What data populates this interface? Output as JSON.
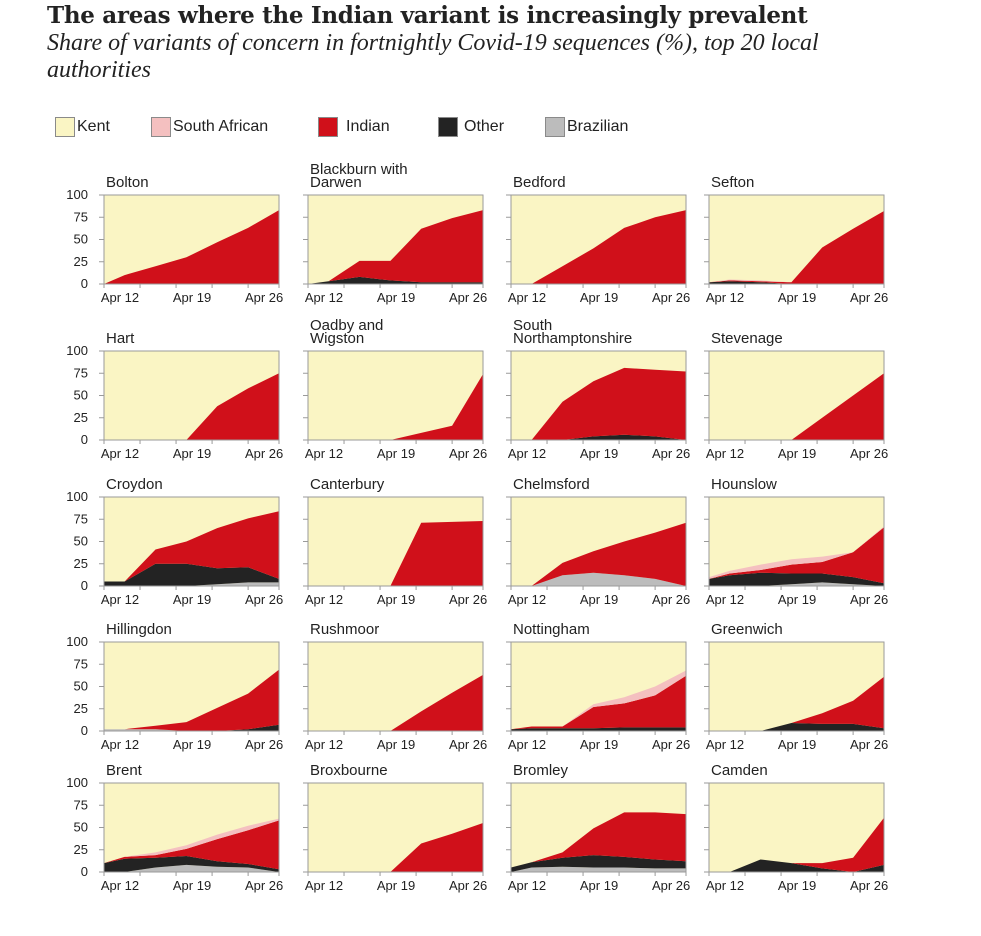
{
  "title": "The areas where the Indian variant is increasingly prevalent",
  "subtitle": "Share of variants of concern in fortnightly Covid-19 sequences (%), top 20 local authorities",
  "chart_data": {
    "type": "area",
    "stacked": true,
    "x": [
      "Apr 12",
      "Apr 14",
      "Apr 17",
      "Apr 20",
      "Apr 23",
      "Apr 26",
      "Apr 29"
    ],
    "xticks": [
      "Apr 12",
      "Apr 19",
      "Apr 26"
    ],
    "yticks": [
      0,
      25,
      50,
      75,
      100
    ],
    "ylim": [
      0,
      100
    ],
    "legend": [
      {
        "name": "Kent",
        "color": "#faf5c4"
      },
      {
        "name": "South African",
        "color": "#f4c0c0"
      },
      {
        "name": "Indian",
        "color": "#d0101a"
      },
      {
        "name": "Other",
        "color": "#232323"
      },
      {
        "name": "Brazilian",
        "color": "#bcbcbc"
      }
    ],
    "panels": [
      {
        "name": "Bolton",
        "brazilian": [
          0,
          0,
          0,
          0,
          0,
          0,
          0
        ],
        "other": [
          0,
          0,
          0,
          0,
          0,
          0,
          0
        ],
        "indian": [
          0,
          10,
          20,
          30,
          47,
          63,
          83
        ],
        "south_african": [
          0,
          0,
          0,
          0,
          0,
          0,
          0
        ]
      },
      {
        "name": "Blackburn with\nDarwen",
        "brazilian": [
          0,
          0,
          0,
          0,
          0,
          0,
          0
        ],
        "other": [
          0,
          3,
          8,
          4,
          2,
          2,
          2
        ],
        "indian": [
          0,
          0,
          18,
          22,
          60,
          72,
          81
        ],
        "south_african": [
          0,
          0,
          0,
          0,
          0,
          0,
          0
        ]
      },
      {
        "name": "Bedford",
        "brazilian": [
          0,
          0,
          0,
          0,
          0,
          0,
          0
        ],
        "other": [
          0,
          0,
          0,
          0,
          0,
          0,
          0
        ],
        "indian": [
          0,
          0,
          20,
          40,
          63,
          75,
          83
        ],
        "south_african": [
          0,
          0,
          0,
          0,
          0,
          0,
          0
        ]
      },
      {
        "name": "Sefton",
        "brazilian": [
          0,
          0,
          0,
          0,
          0,
          0,
          0
        ],
        "other": [
          2,
          3,
          2,
          0,
          0,
          0,
          0
        ],
        "indian": [
          0,
          1,
          1,
          2,
          41,
          62,
          82
        ],
        "south_african": [
          0,
          1,
          1,
          0,
          0,
          0,
          0
        ]
      },
      {
        "name": "Hart",
        "brazilian": [
          0,
          0,
          0,
          0,
          0,
          0,
          0
        ],
        "other": [
          0,
          0,
          0,
          0,
          0,
          0,
          0
        ],
        "indian": [
          0,
          0,
          0,
          0,
          38,
          58,
          75
        ],
        "south_african": [
          0,
          0,
          0,
          0,
          0,
          0,
          0
        ]
      },
      {
        "name": "Oadby and\nWigston",
        "brazilian": [
          0,
          0,
          0,
          0,
          0,
          0,
          0
        ],
        "other": [
          0,
          0,
          0,
          0,
          0,
          0,
          0
        ],
        "indian": [
          0,
          0,
          0,
          0,
          8,
          16,
          74
        ],
        "south_african": [
          0,
          0,
          0,
          0,
          0,
          0,
          0
        ]
      },
      {
        "name": "South\nNorthamptonshire",
        "brazilian": [
          0,
          0,
          0,
          0,
          0,
          0,
          0
        ],
        "other": [
          0,
          0,
          0,
          4,
          6,
          4,
          0
        ],
        "indian": [
          0,
          0,
          43,
          62,
          75,
          75,
          77
        ],
        "south_african": [
          0,
          0,
          0,
          0,
          0,
          0,
          0
        ]
      },
      {
        "name": "Stevenage",
        "brazilian": [
          0,
          0,
          0,
          0,
          0,
          0,
          0
        ],
        "other": [
          0,
          0,
          0,
          0,
          0,
          0,
          0
        ],
        "indian": [
          0,
          0,
          0,
          0,
          25,
          50,
          75
        ],
        "south_african": [
          0,
          0,
          0,
          0,
          0,
          0,
          0
        ]
      },
      {
        "name": "Croydon",
        "brazilian": [
          0,
          0,
          0,
          0,
          2,
          4,
          4
        ],
        "other": [
          5,
          5,
          25,
          25,
          18,
          17,
          4
        ],
        "indian": [
          0,
          0,
          16,
          25,
          45,
          55,
          76
        ],
        "south_african": [
          0,
          0,
          0,
          0,
          0,
          0,
          0
        ]
      },
      {
        "name": "Canterbury",
        "brazilian": [
          0,
          0,
          0,
          0,
          0,
          0,
          0
        ],
        "other": [
          0,
          0,
          0,
          0,
          0,
          0,
          0
        ],
        "indian": [
          0,
          0,
          0,
          0,
          71,
          72,
          73
        ],
        "south_african": [
          0,
          0,
          0,
          0,
          0,
          0,
          0
        ]
      },
      {
        "name": "Chelmsford",
        "brazilian": [
          0,
          0,
          12,
          15,
          12,
          8,
          0
        ],
        "other": [
          0,
          0,
          0,
          0,
          0,
          0,
          0
        ],
        "indian": [
          0,
          0,
          14,
          24,
          38,
          52,
          71
        ],
        "south_african": [
          0,
          0,
          0,
          0,
          0,
          0,
          0
        ]
      },
      {
        "name": "Hounslow",
        "brazilian": [
          0,
          0,
          0,
          2,
          4,
          2,
          0
        ],
        "other": [
          8,
          12,
          15,
          12,
          10,
          8,
          3
        ],
        "indian": [
          0,
          2,
          3,
          10,
          13,
          28,
          63
        ],
        "south_african": [
          2,
          3,
          6,
          6,
          6,
          0,
          1
        ]
      },
      {
        "name": "Hillingdon",
        "brazilian": [
          2,
          2,
          2,
          0,
          0,
          0,
          0
        ],
        "other": [
          0,
          0,
          0,
          0,
          0,
          2,
          7
        ],
        "indian": [
          0,
          0,
          4,
          10,
          26,
          40,
          62
        ],
        "south_african": [
          0,
          0,
          0,
          0,
          0,
          0,
          0
        ]
      },
      {
        "name": "Rushmoor",
        "brazilian": [
          0,
          0,
          0,
          0,
          0,
          0,
          0
        ],
        "other": [
          0,
          0,
          0,
          0,
          0,
          0,
          0
        ],
        "indian": [
          0,
          0,
          0,
          0,
          22,
          43,
          63
        ],
        "south_african": [
          0,
          0,
          0,
          0,
          0,
          0,
          0
        ]
      },
      {
        "name": "Nottingham",
        "brazilian": [
          0,
          0,
          0,
          0,
          0,
          0,
          0
        ],
        "other": [
          2,
          3,
          3,
          3,
          4,
          4,
          4
        ],
        "indian": [
          0,
          2,
          2,
          24,
          27,
          36,
          58
        ],
        "south_african": [
          0,
          0,
          0,
          3,
          7,
          10,
          6
        ]
      },
      {
        "name": "Greenwich",
        "brazilian": [
          0,
          0,
          0,
          0,
          0,
          0,
          0
        ],
        "other": [
          0,
          0,
          0,
          9,
          8,
          8,
          3
        ],
        "indian": [
          0,
          0,
          0,
          0,
          12,
          26,
          58
        ],
        "south_african": [
          0,
          0,
          0,
          0,
          0,
          0,
          0
        ]
      },
      {
        "name": "Brent",
        "brazilian": [
          0,
          0,
          5,
          8,
          6,
          5,
          0
        ],
        "other": [
          10,
          15,
          11,
          10,
          6,
          4,
          3
        ],
        "indian": [
          0,
          2,
          3,
          8,
          25,
          38,
          55
        ],
        "south_african": [
          0,
          0,
          3,
          4,
          5,
          5,
          2
        ]
      },
      {
        "name": "Broxbourne",
        "brazilian": [
          0,
          0,
          0,
          0,
          0,
          0,
          0
        ],
        "other": [
          0,
          0,
          0,
          0,
          0,
          0,
          0
        ],
        "indian": [
          0,
          0,
          0,
          0,
          32,
          43,
          55
        ],
        "south_african": [
          0,
          0,
          0,
          0,
          0,
          0,
          0
        ]
      },
      {
        "name": "Bromley",
        "brazilian": [
          0,
          5,
          6,
          5,
          5,
          4,
          4
        ],
        "other": [
          5,
          6,
          10,
          14,
          12,
          10,
          8
        ],
        "indian": [
          0,
          0,
          6,
          30,
          50,
          53,
          53
        ],
        "south_african": [
          0,
          0,
          0,
          0,
          0,
          0,
          0
        ]
      },
      {
        "name": "Camden",
        "brazilian": [
          0,
          0,
          0,
          0,
          0,
          0,
          0
        ],
        "other": [
          0,
          0,
          14,
          10,
          4,
          0,
          8
        ],
        "indian": [
          0,
          0,
          0,
          0,
          6,
          16,
          53
        ],
        "south_african": [
          0,
          0,
          0,
          0,
          0,
          0,
          0
        ]
      }
    ]
  }
}
